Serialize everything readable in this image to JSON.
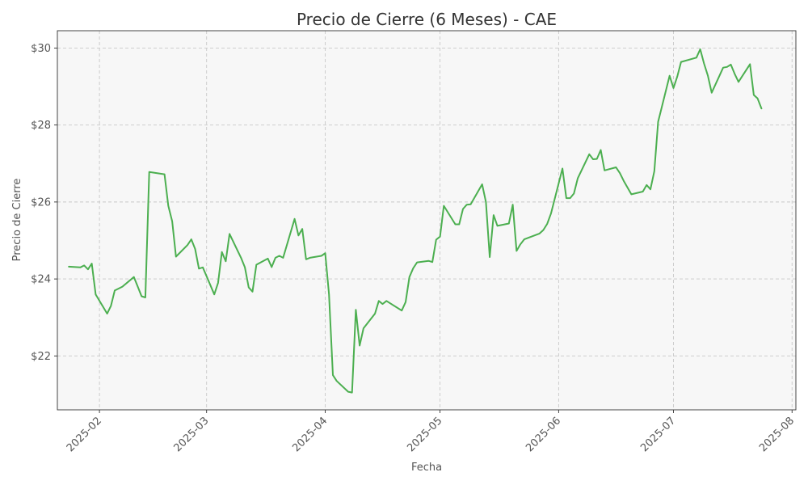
{
  "chart_data": {
    "type": "line",
    "title": "Precio de Cierre (6 Meses) - CAE",
    "xlabel": "Fecha",
    "ylabel": "Precio de Cierre",
    "x_ticks": [
      "2025-02",
      "2025-03",
      "2025-04",
      "2025-05",
      "2025-06",
      "2025-07",
      "2025-08"
    ],
    "y_ticks": [
      "$22",
      "$24",
      "$26",
      "$28",
      "$30"
    ],
    "y_tick_values": [
      22,
      24,
      26,
      28,
      30
    ],
    "xlim": [
      "2025-01-21",
      "2025-08-02"
    ],
    "ylim": [
      20.6,
      30.45
    ],
    "grid": true,
    "colors": {
      "line": "#4caf50",
      "plot_bg": "#f7f7f7"
    },
    "series": [
      {
        "x": [
          "2025-01-24",
          "2025-01-27",
          "2025-01-28",
          "2025-01-29",
          "2025-01-30",
          "2025-01-31",
          "2025-02-03",
          "2025-02-04",
          "2025-02-05",
          "2025-02-06",
          "2025-02-07",
          "2025-02-10",
          "2025-02-11",
          "2025-02-12",
          "2025-02-13",
          "2025-02-14",
          "2025-02-18",
          "2025-02-19",
          "2025-02-20",
          "2025-02-21",
          "2025-02-24",
          "2025-02-25",
          "2025-02-26",
          "2025-02-27",
          "2025-02-28",
          "2025-03-03",
          "2025-03-04",
          "2025-03-05",
          "2025-03-06",
          "2025-03-07",
          "2025-03-10",
          "2025-03-11",
          "2025-03-12",
          "2025-03-13",
          "2025-03-14",
          "2025-03-17",
          "2025-03-18",
          "2025-03-19",
          "2025-03-20",
          "2025-03-21",
          "2025-03-24",
          "2025-03-25",
          "2025-03-26",
          "2025-03-27",
          "2025-03-28",
          "2025-03-31",
          "2025-04-01",
          "2025-04-02",
          "2025-04-03",
          "2025-04-04",
          "2025-04-07",
          "2025-04-08",
          "2025-04-09",
          "2025-04-10",
          "2025-04-11",
          "2025-04-14",
          "2025-04-15",
          "2025-04-16",
          "2025-04-17",
          "2025-04-21",
          "2025-04-22",
          "2025-04-23",
          "2025-04-24",
          "2025-04-25",
          "2025-04-28",
          "2025-04-29",
          "2025-04-30",
          "2025-05-01",
          "2025-05-02",
          "2025-05-05",
          "2025-05-06",
          "2025-05-07",
          "2025-05-08",
          "2025-05-09",
          "2025-05-12",
          "2025-05-13",
          "2025-05-14",
          "2025-05-15",
          "2025-05-16",
          "2025-05-19",
          "2025-05-20",
          "2025-05-21",
          "2025-05-22",
          "2025-05-23",
          "2025-05-27",
          "2025-05-28",
          "2025-05-29",
          "2025-05-30",
          "2025-06-02",
          "2025-06-03",
          "2025-06-04",
          "2025-06-05",
          "2025-06-06",
          "2025-06-09",
          "2025-06-10",
          "2025-06-11",
          "2025-06-12",
          "2025-06-13",
          "2025-06-16",
          "2025-06-17",
          "2025-06-18",
          "2025-06-20",
          "2025-06-23",
          "2025-06-24",
          "2025-06-25",
          "2025-06-26",
          "2025-06-27",
          "2025-06-30",
          "2025-07-01",
          "2025-07-02",
          "2025-07-03",
          "2025-07-07",
          "2025-07-08",
          "2025-07-09",
          "2025-07-10",
          "2025-07-11",
          "2025-07-14",
          "2025-07-15",
          "2025-07-16",
          "2025-07-17",
          "2025-07-18",
          "2025-07-21",
          "2025-07-22",
          "2025-07-23",
          "2025-07-24"
        ],
        "values": [
          24.32,
          24.3,
          24.35,
          24.25,
          24.4,
          23.6,
          23.1,
          23.3,
          23.7,
          23.75,
          23.8,
          24.05,
          23.8,
          23.55,
          23.52,
          26.78,
          26.72,
          25.9,
          25.5,
          24.58,
          24.88,
          25.03,
          24.78,
          24.27,
          24.3,
          23.6,
          23.9,
          24.7,
          24.46,
          25.17,
          24.55,
          24.3,
          23.78,
          23.67,
          24.37,
          24.53,
          24.31,
          24.55,
          24.6,
          24.55,
          25.56,
          25.13,
          25.3,
          24.51,
          24.55,
          24.6,
          24.67,
          23.6,
          21.5,
          21.35,
          21.07,
          21.05,
          23.2,
          22.27,
          22.72,
          23.1,
          23.43,
          23.35,
          23.43,
          23.18,
          23.4,
          24.05,
          24.28,
          24.43,
          24.47,
          24.44,
          25.02,
          25.1,
          25.9,
          25.42,
          25.42,
          25.82,
          25.93,
          25.94,
          26.46,
          26.0,
          24.57,
          25.66,
          25.38,
          25.44,
          25.93,
          24.73,
          24.9,
          25.03,
          25.18,
          25.27,
          25.43,
          25.7,
          26.87,
          26.1,
          26.1,
          26.22,
          26.62,
          27.24,
          27.11,
          27.12,
          27.35,
          26.82,
          26.9,
          26.75,
          26.55,
          26.2,
          26.27,
          26.44,
          26.33,
          26.8,
          28.08,
          29.28,
          28.96,
          29.26,
          29.64,
          29.75,
          29.97,
          29.6,
          29.28,
          28.84,
          29.49,
          29.51,
          29.57,
          29.33,
          29.12,
          29.58,
          28.78,
          28.69,
          28.43
        ]
      }
    ]
  }
}
